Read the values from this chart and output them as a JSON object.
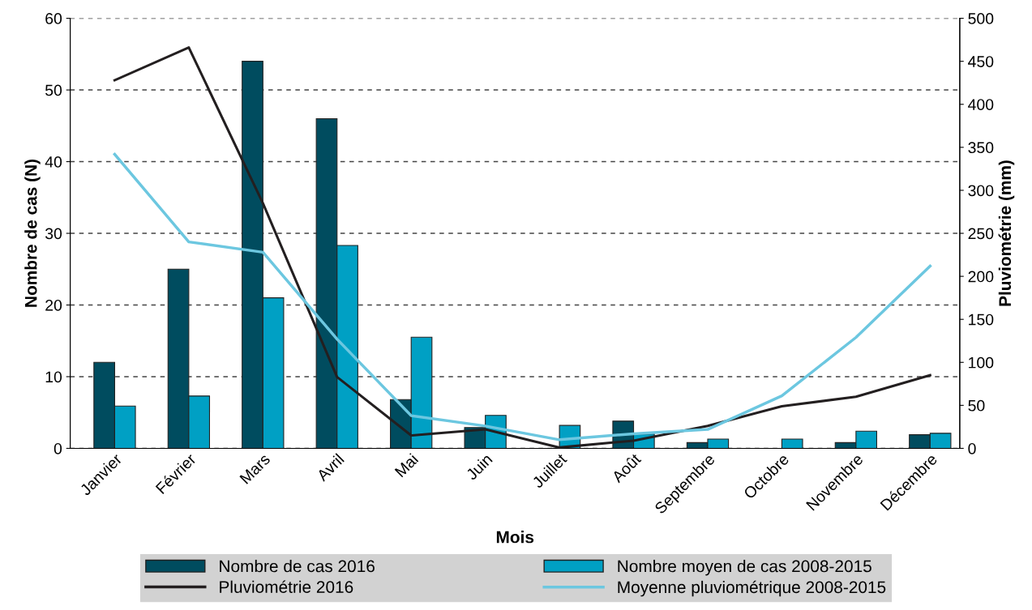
{
  "chart_data": {
    "type": "bar",
    "xlabel": "Mois",
    "ylabel": "Nombre de cas (N)",
    "y2label": "Pluviométrie (mm)",
    "categories": [
      "Janvier",
      "Février",
      "Mars",
      "Avril",
      "Mai",
      "Juin",
      "Juillet",
      "Août",
      "Septembre",
      "Octobre",
      "Novembre",
      "Décembre"
    ],
    "series": [
      {
        "name": "Nombre de cas 2016",
        "color": "#004c5f",
        "values": [
          12,
          25,
          54,
          46,
          6.8,
          2.9,
          0,
          3.8,
          0.8,
          0,
          0.8,
          1.9
        ]
      },
      {
        "name": "Nombre moyen de cas 2008-2015",
        "color": "#00a0c4",
        "values": [
          5.9,
          7.3,
          21,
          28.3,
          15.5,
          4.6,
          3.2,
          2,
          1.3,
          1.3,
          2.4,
          2.1
        ]
      },
      {
        "name": "Pluviométrie 2016",
        "type": "line",
        "axis": "y2",
        "color": "#231f20",
        "values": [
          428,
          466,
          285,
          83,
          15,
          22,
          1,
          9,
          26,
          49,
          60,
          85
        ]
      },
      {
        "name": "Moyenne pluviométrique 2008-2015",
        "type": "line",
        "axis": "y2",
        "color": "#6cc7e0",
        "values": [
          342,
          240,
          228,
          127,
          38,
          26,
          10,
          17,
          22,
          61,
          129,
          212
        ]
      }
    ],
    "ylim": [
      0,
      60
    ],
    "yticks": [
      0,
      10,
      20,
      30,
      40,
      50,
      60
    ],
    "y2lim": [
      0,
      500
    ],
    "y2ticks": [
      0,
      50,
      100,
      150,
      200,
      250,
      300,
      350,
      400,
      450,
      500
    ],
    "grid": "y",
    "legend": "bottom",
    "marker": "none",
    "line_style": "solid"
  }
}
